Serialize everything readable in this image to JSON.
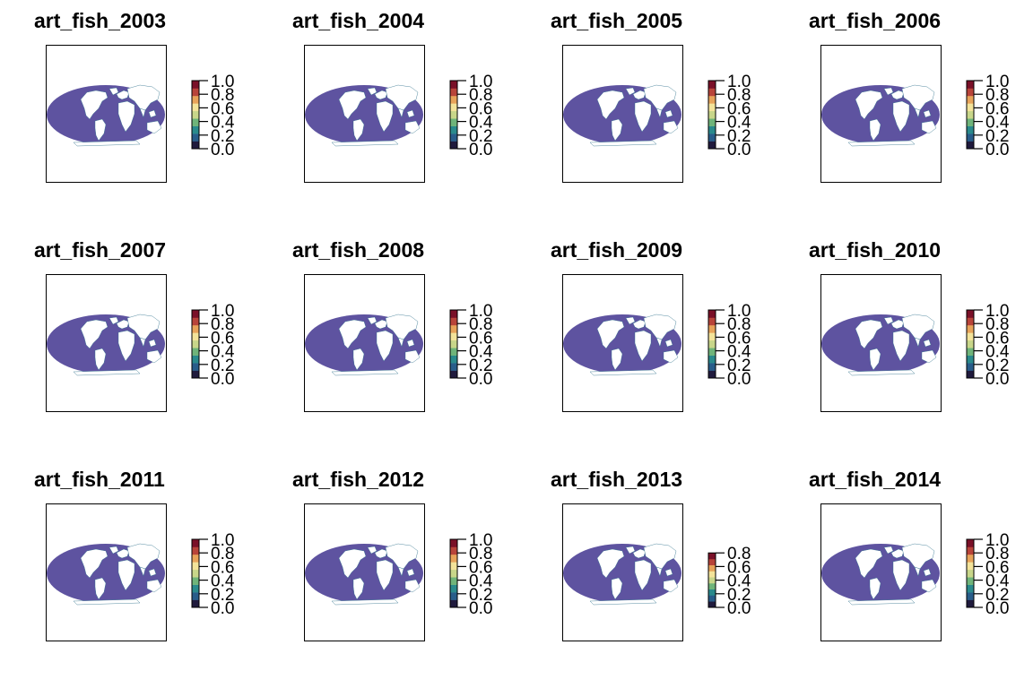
{
  "colors": {
    "ocean": "#5e53a0",
    "land": "#ffffff",
    "coast": "#2c6f8a",
    "frame": "#000000",
    "colorbar": [
      "#1f1a3d",
      "#285d8a",
      "#2a8a8c",
      "#6fb47a",
      "#c8d68a",
      "#f3e39a",
      "#e7a35a",
      "#b8443a",
      "#7a1028"
    ]
  },
  "panels": [
    {
      "title": "art_fish_2003",
      "legend_ticks": [
        "1.0",
        "0.8",
        "0.6",
        "0.4",
        "0.2",
        "0.0"
      ],
      "legend_max": 1.0
    },
    {
      "title": "art_fish_2004",
      "legend_ticks": [
        "1.0",
        "0.8",
        "0.6",
        "0.4",
        "0.2",
        "0.0"
      ],
      "legend_max": 1.0
    },
    {
      "title": "art_fish_2005",
      "legend_ticks": [
        "1.0",
        "0.8",
        "0.6",
        "0.4",
        "0.2",
        "0.0"
      ],
      "legend_max": 1.0
    },
    {
      "title": "art_fish_2006",
      "legend_ticks": [
        "1.0",
        "0.8",
        "0.6",
        "0.4",
        "0.2",
        "0.0"
      ],
      "legend_max": 1.0
    },
    {
      "title": "art_fish_2007",
      "legend_ticks": [
        "1.0",
        "0.8",
        "0.6",
        "0.4",
        "0.2",
        "0.0"
      ],
      "legend_max": 1.0
    },
    {
      "title": "art_fish_2008",
      "legend_ticks": [
        "1.0",
        "0.8",
        "0.6",
        "0.4",
        "0.2",
        "0.0"
      ],
      "legend_max": 1.0
    },
    {
      "title": "art_fish_2009",
      "legend_ticks": [
        "1.0",
        "0.8",
        "0.6",
        "0.4",
        "0.2",
        "0.0"
      ],
      "legend_max": 1.0
    },
    {
      "title": "art_fish_2010",
      "legend_ticks": [
        "1.0",
        "0.8",
        "0.6",
        "0.4",
        "0.2",
        "0.0"
      ],
      "legend_max": 1.0
    },
    {
      "title": "art_fish_2011",
      "legend_ticks": [
        "1.0",
        "0.8",
        "0.6",
        "0.4",
        "0.2",
        "0.0"
      ],
      "legend_max": 1.0
    },
    {
      "title": "art_fish_2012",
      "legend_ticks": [
        "1.0",
        "0.8",
        "0.6",
        "0.4",
        "0.2",
        "0.0"
      ],
      "legend_max": 1.0
    },
    {
      "title": "art_fish_2013",
      "legend_ticks": [
        "0.8",
        "0.6",
        "0.4",
        "0.2",
        "0.0"
      ],
      "legend_max": 0.8
    },
    {
      "title": "art_fish_2014",
      "legend_ticks": [
        "1.0",
        "0.8",
        "0.6",
        "0.4",
        "0.2",
        "0.0"
      ],
      "legend_max": 1.0
    }
  ]
}
